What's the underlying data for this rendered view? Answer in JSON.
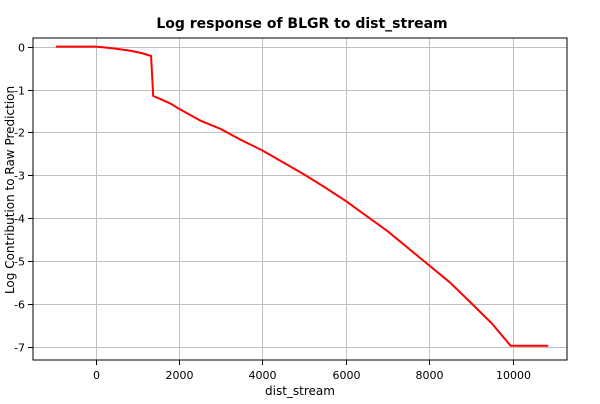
{
  "chart_data": {
    "type": "line",
    "title": "Log response of BLGR to dist_stream",
    "xlabel": "dist_stream",
    "ylabel": "Log Contribution to Raw Prediction",
    "xlim": [
      -1500,
      11300
    ],
    "ylim": [
      -7.3,
      0.2
    ],
    "xticks": [
      0,
      2000,
      4000,
      6000,
      8000,
      10000
    ],
    "yticks": [
      0,
      -1,
      -2,
      -3,
      -4,
      -5,
      -6,
      -7
    ],
    "grid": true,
    "legend": "none",
    "colors": {
      "line": "#ff0000",
      "grid": "#c0c0c0",
      "axis": "#000000",
      "background": "#ffffff"
    },
    "series": [
      {
        "values": [
          [
            -950,
            0
          ],
          [
            0,
            0
          ],
          [
            200,
            -0.02
          ],
          [
            500,
            -0.05
          ],
          [
            800,
            -0.09
          ],
          [
            1100,
            -0.15
          ],
          [
            1330,
            -0.22
          ],
          [
            1380,
            -1.15
          ],
          [
            1500,
            -1.2
          ],
          [
            1800,
            -1.33
          ],
          [
            2000,
            -1.45
          ],
          [
            2500,
            -1.72
          ],
          [
            3000,
            -1.92
          ],
          [
            3500,
            -2.18
          ],
          [
            4000,
            -2.42
          ],
          [
            4500,
            -2.7
          ],
          [
            5000,
            -2.98
          ],
          [
            5500,
            -3.28
          ],
          [
            6000,
            -3.6
          ],
          [
            6500,
            -3.95
          ],
          [
            7000,
            -4.3
          ],
          [
            7500,
            -4.7
          ],
          [
            8000,
            -5.1
          ],
          [
            8500,
            -5.5
          ],
          [
            9000,
            -5.97
          ],
          [
            9500,
            -6.45
          ],
          [
            9950,
            -6.97
          ],
          [
            10850,
            -6.97
          ]
        ]
      }
    ]
  }
}
